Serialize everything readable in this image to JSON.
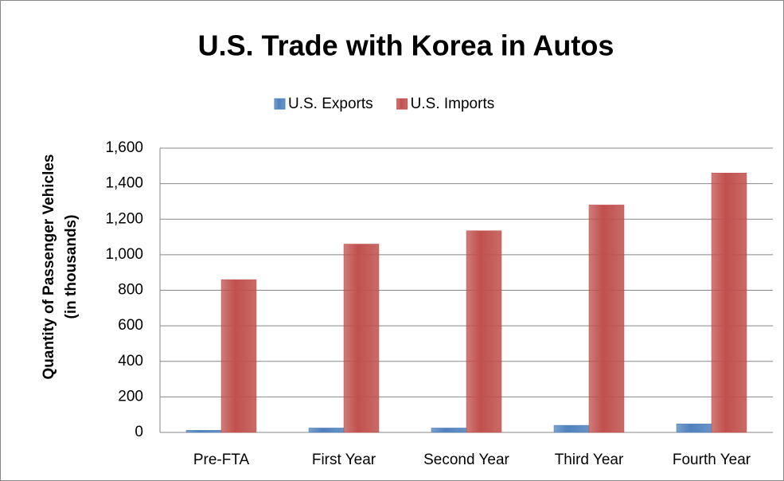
{
  "chart_data": {
    "type": "bar",
    "title": "U.S. Trade with Korea in Autos",
    "y_label": [
      "Quantity of Passenger Vehicles",
      "(in thousands)"
    ],
    "categories": [
      "Pre-FTA",
      "First Year",
      "Second Year",
      "Third Year",
      "Fourth Year"
    ],
    "series": [
      {
        "name": "U.S. Exports",
        "color": "#4f81bd",
        "values": [
          12,
          25,
          25,
          40,
          48
        ]
      },
      {
        "name": "U.S. Imports",
        "color": "#c0504d",
        "values": [
          860,
          1060,
          1135,
          1280,
          1460
        ]
      }
    ],
    "ylim": [
      0,
      1600
    ],
    "yticks": [
      0,
      {
        "value": 200,
        "label": "200"
      },
      {
        "value": 400,
        "label": "400"
      },
      {
        "value": 600,
        "label": "600"
      },
      {
        "value": 800,
        "label": "800"
      },
      {
        "value": 1000,
        "label": "1,000"
      },
      {
        "value": 1200,
        "label": "1,200"
      },
      {
        "value": 1400,
        "label": "1,400"
      },
      {
        "value": 1600,
        "label": "1,600"
      }
    ],
    "grid": true,
    "legend": "top"
  }
}
